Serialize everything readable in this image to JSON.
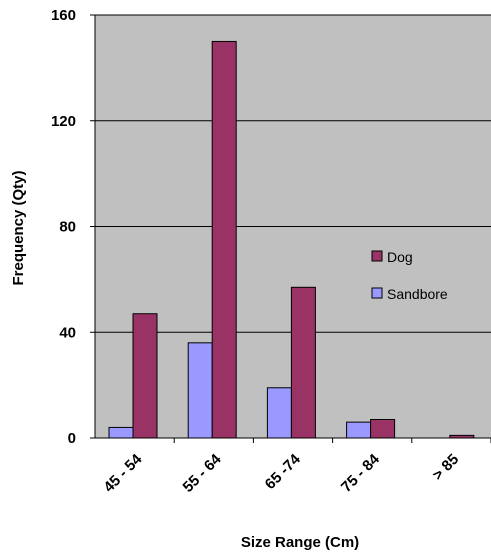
{
  "chart_data": {
    "type": "bar",
    "title": "",
    "xlabel": "Size Range (Cm)",
    "ylabel": "Frequency (Qty)",
    "categories": [
      "45 - 54",
      "55 - 64",
      "65 -74",
      "75 - 84",
      "> 85"
    ],
    "series": [
      {
        "name": "Sandbore",
        "values": [
          4,
          36,
          19,
          6,
          0
        ],
        "color": "#9999ff"
      },
      {
        "name": "Dog",
        "values": [
          47,
          150,
          57,
          7,
          1
        ],
        "color": "#993366"
      }
    ],
    "ylim": [
      0,
      160
    ],
    "yticks": [
      0,
      40,
      80,
      120,
      160
    ],
    "grid": true,
    "plot_background": "#c0c0c0",
    "legend_position": "right"
  }
}
